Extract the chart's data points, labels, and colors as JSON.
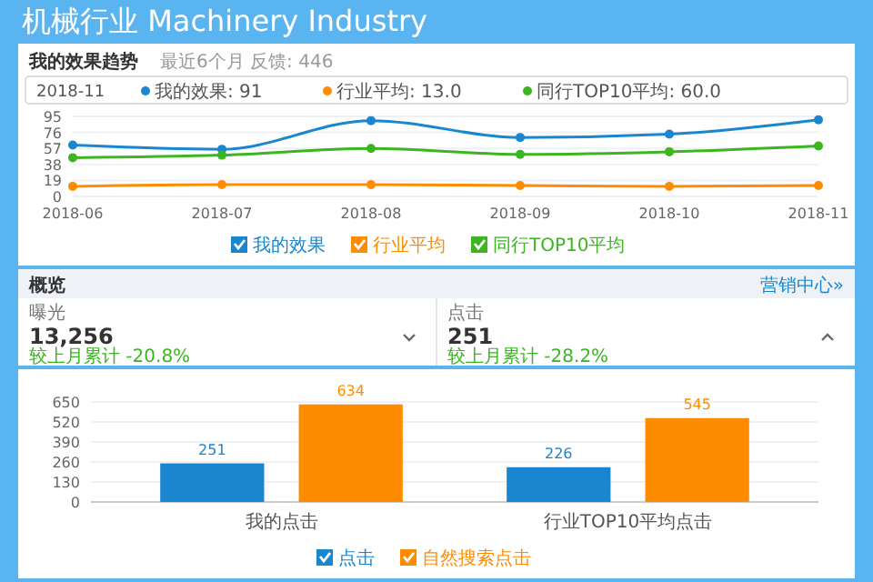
{
  "chart_data": [
    {
      "type": "line",
      "title": "我的效果趋势",
      "subtitle": "最近6个月 反馈: 446",
      "annotations": [
        "机械行业 Machinery Industry",
        "2018-11",
        "我的效果: 91",
        "行业平均: 13.0",
        "同行TOP10平均: 60.0"
      ],
      "categories": [
        "2018-06",
        "2018-07",
        "2018-08",
        "2018-09",
        "2018-10",
        "2018-11"
      ],
      "series": [
        {
          "name": "我的效果",
          "color": "#1a86d0",
          "values": [
            61,
            56,
            90,
            70,
            74,
            91
          ]
        },
        {
          "name": "行业平均",
          "color": "#ff8c00",
          "values": [
            12,
            14,
            14,
            13,
            12,
            13
          ]
        },
        {
          "name": "同行TOP10平均",
          "color": "#3cb521",
          "values": [
            46,
            49,
            57,
            50,
            53,
            60
          ]
        }
      ],
      "ylim": [
        0,
        95
      ],
      "yticks": [
        0,
        19,
        38,
        57,
        76,
        95
      ],
      "grid": "y",
      "legend": "bottom",
      "marker": "circle"
    },
    {
      "type": "other",
      "title": "概览",
      "annotations": [
        "营销中心»",
        "曝光",
        "13,256",
        "较上月累计 -20.8%",
        "点击",
        "251",
        "较上月累计 -28.2%"
      ]
    },
    {
      "type": "bar",
      "categories": [
        "我的点击",
        "行业TOP10平均点击"
      ],
      "series": [
        {
          "name": "点击",
          "color": "#1a86d0",
          "values": [
            251,
            226
          ]
        },
        {
          "name": "自然搜索点击",
          "color": "#ff8c00",
          "values": [
            634,
            545
          ]
        }
      ],
      "ylim": [
        0,
        650
      ],
      "yticks": [
        0,
        130,
        260,
        390,
        520,
        650
      ],
      "grid": "y",
      "legend": "bottom",
      "data_labels": true
    }
  ]
}
